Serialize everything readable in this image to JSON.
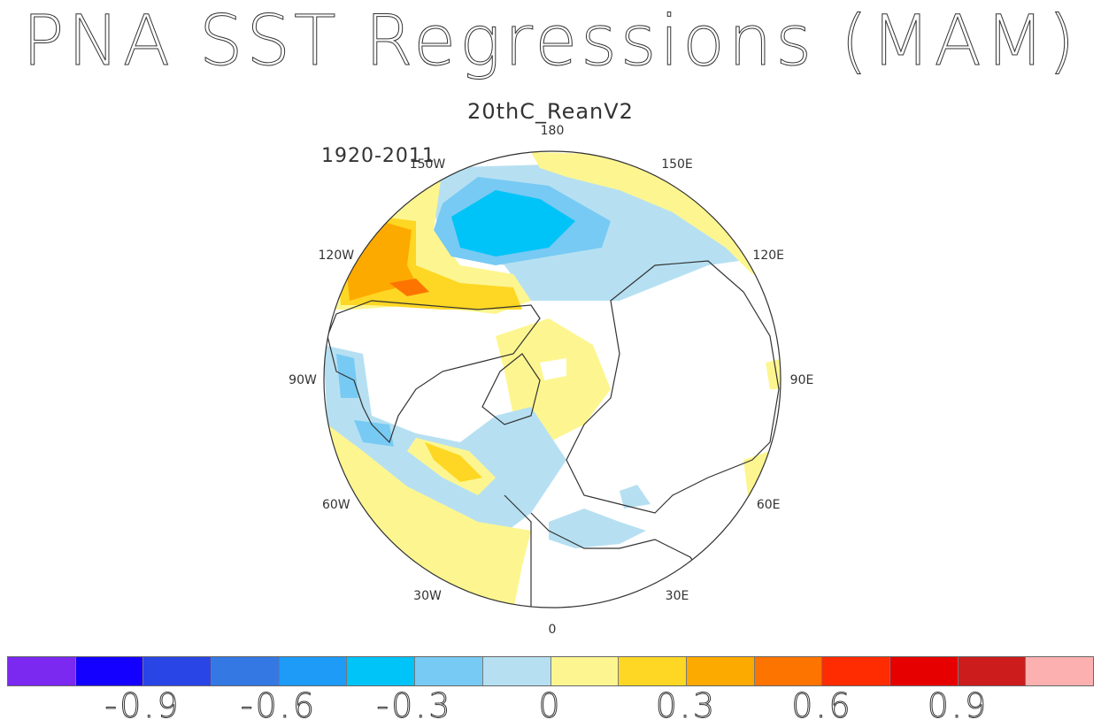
{
  "header": {
    "title": "PNA SST Regressions (MAM)",
    "subtitle": "20thC_ReanV2",
    "period": "1920-2011"
  },
  "map": {
    "longitude_labels": [
      "180",
      "150E",
      "120E",
      "90E",
      "60E",
      "30E",
      "0",
      "30W",
      "60W",
      "90W",
      "120W",
      "150W"
    ]
  },
  "colorbar": {
    "colors": [
      "#7b28f0",
      "#1400ff",
      "#2a45e6",
      "#3478e3",
      "#1d9bf7",
      "#00c3f8",
      "#77caf3",
      "#b6e0f2",
      "#fdf690",
      "#fed724",
      "#fdaa00",
      "#fd7400",
      "#fe2c00",
      "#e60000",
      "#cc1c1c",
      "#fdb0b0"
    ],
    "labels": [
      "-0.9",
      "-0.6",
      "-0.3",
      "0",
      "0.3",
      "0.6",
      "0.9"
    ]
  }
}
